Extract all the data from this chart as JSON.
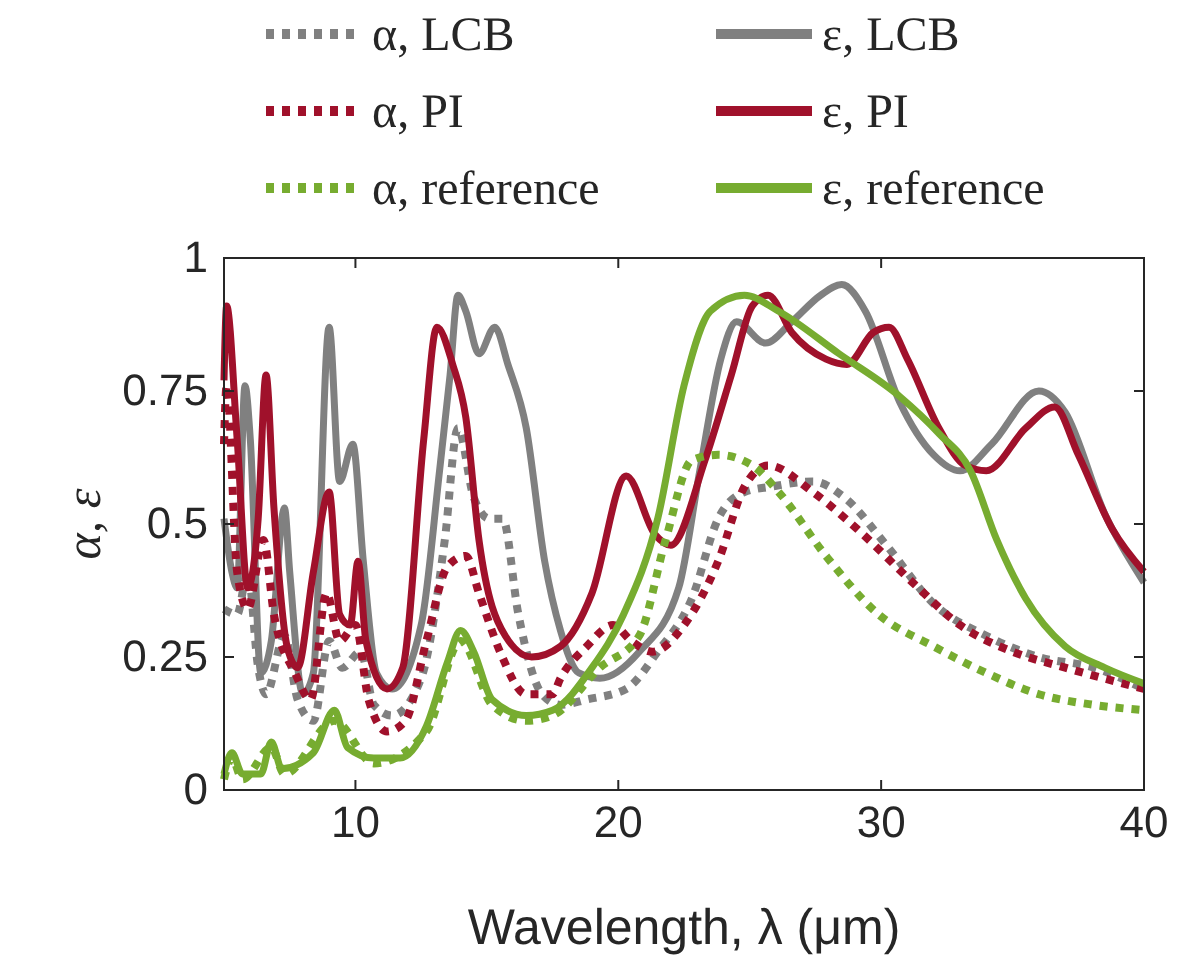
{
  "chart_data": {
    "type": "line",
    "xlabel": "Wavelength, λ (μm)",
    "ylabel": "α, ε",
    "xlim": [
      5,
      40
    ],
    "ylim": [
      0,
      1
    ],
    "xticks": [
      {
        "value": 5,
        "label": null
      },
      10,
      20,
      30,
      40
    ],
    "yticks": [
      0,
      0.25,
      0.5,
      0.75,
      1
    ],
    "grid": false,
    "legend": "top",
    "series": [
      {
        "name": "α, LCB",
        "color": "#808080",
        "line_style": "dotted",
        "x": [
          5,
          5.5,
          5.9,
          6.3,
          6.6,
          7.3,
          7.8,
          8.4,
          9.0,
          9.5,
          10.2,
          10.7,
          11.4,
          12.5,
          13.4,
          13.9,
          14.5,
          15.1,
          15.6,
          16.2,
          17.1,
          17.8,
          18.8,
          20.3,
          21.5,
          22.8,
          23.8,
          24.8,
          25.8,
          27.4,
          28.6,
          30.2,
          32.0,
          34.0,
          36.0,
          38.1,
          40
        ],
        "values": [
          0.34,
          0.33,
          0.41,
          0.23,
          0.18,
          0.29,
          0.17,
          0.13,
          0.28,
          0.23,
          0.26,
          0.16,
          0.14,
          0.21,
          0.47,
          0.68,
          0.55,
          0.51,
          0.51,
          0.33,
          0.18,
          0.16,
          0.17,
          0.19,
          0.26,
          0.36,
          0.51,
          0.56,
          0.57,
          0.58,
          0.55,
          0.46,
          0.35,
          0.29,
          0.25,
          0.23,
          0.19
        ]
      },
      {
        "name": "ε, LCB",
        "color": "#808080",
        "line_style": "solid",
        "x": [
          5,
          5.3,
          5.5,
          5.8,
          6.0,
          6.4,
          6.8,
          7.3,
          7.5,
          8.0,
          8.4,
          9.0,
          9.4,
          9.9,
          10.3,
          10.8,
          11.4,
          12.5,
          13.2,
          13.6,
          13.9,
          14.2,
          14.7,
          15.3,
          15.8,
          16.5,
          17.2,
          17.8,
          18.5,
          19.3,
          20.8,
          22.3,
          23.1,
          23.9,
          24.5,
          25.6,
          26.6,
          27.7,
          28.5,
          29.4,
          30.7,
          32.0,
          33.0,
          34.2,
          36.0,
          37.0,
          38.5,
          40
        ],
        "values": [
          0.51,
          0.41,
          0.38,
          0.76,
          0.66,
          0.22,
          0.28,
          0.53,
          0.41,
          0.18,
          0.22,
          0.87,
          0.58,
          0.65,
          0.43,
          0.22,
          0.19,
          0.31,
          0.6,
          0.78,
          0.93,
          0.9,
          0.82,
          0.87,
          0.8,
          0.68,
          0.43,
          0.3,
          0.22,
          0.21,
          0.26,
          0.38,
          0.6,
          0.81,
          0.88,
          0.84,
          0.88,
          0.93,
          0.95,
          0.9,
          0.73,
          0.63,
          0.6,
          0.65,
          0.75,
          0.71,
          0.52,
          0.39
        ]
      },
      {
        "name": "α, PI",
        "color": "#a0112b",
        "line_style": "dotted",
        "x": [
          5,
          5.1,
          5.5,
          5.9,
          6.5,
          6.9,
          7.7,
          8.3,
          8.9,
          9.4,
          10.0,
          10.5,
          11.2,
          11.9,
          12.7,
          13.5,
          14.2,
          14.7,
          15.5,
          16.5,
          17.5,
          17.8,
          18.8,
          19.8,
          20.5,
          21.3,
          22.5,
          23.8,
          24.8,
          25.7,
          27.4,
          29.1,
          31.2,
          33.0,
          35.0,
          37.0,
          40
        ],
        "values": [
          0.65,
          0.76,
          0.41,
          0.34,
          0.47,
          0.33,
          0.22,
          0.17,
          0.37,
          0.28,
          0.31,
          0.17,
          0.11,
          0.13,
          0.28,
          0.42,
          0.44,
          0.37,
          0.26,
          0.18,
          0.18,
          0.21,
          0.27,
          0.31,
          0.28,
          0.26,
          0.31,
          0.43,
          0.57,
          0.61,
          0.56,
          0.49,
          0.39,
          0.31,
          0.26,
          0.23,
          0.19
        ]
      },
      {
        "name": "ε, PI",
        "color": "#a0112b",
        "line_style": "solid",
        "x": [
          5,
          5.1,
          5.5,
          5.9,
          6.3,
          6.6,
          6.9,
          7.4,
          7.8,
          8.4,
          9.0,
          9.4,
          9.8,
          10.1,
          10.4,
          11.2,
          11.8,
          12.6,
          13.1,
          13.7,
          14.2,
          14.7,
          15.7,
          16.7,
          17.8,
          19.0,
          20.3,
          21.4,
          22.0,
          23.3,
          24.3,
          25.1,
          25.7,
          26.6,
          27.9,
          28.7,
          29.7,
          30.3,
          31.0,
          32.2,
          33.2,
          34.0,
          35.5,
          36.6,
          37.5,
          38.8,
          40
        ],
        "values": [
          0.77,
          0.91,
          0.66,
          0.38,
          0.51,
          0.78,
          0.53,
          0.27,
          0.23,
          0.41,
          0.56,
          0.33,
          0.31,
          0.43,
          0.28,
          0.19,
          0.23,
          0.66,
          0.87,
          0.8,
          0.7,
          0.47,
          0.29,
          0.25,
          0.27,
          0.37,
          0.59,
          0.48,
          0.46,
          0.62,
          0.78,
          0.91,
          0.93,
          0.86,
          0.81,
          0.8,
          0.86,
          0.87,
          0.81,
          0.68,
          0.61,
          0.6,
          0.68,
          0.72,
          0.63,
          0.49,
          0.41
        ]
      },
      {
        "name": "α, reference",
        "color": "#77ac30",
        "line_style": "dotted",
        "x": [
          5,
          5.3,
          5.7,
          6.8,
          7.3,
          9.2,
          10.7,
          12.7,
          14.0,
          15.2,
          16.5,
          17.5,
          19.3,
          20.8,
          21.8,
          22.8,
          23.8,
          25.1,
          26.1,
          27.9,
          29.9,
          32.0,
          34.0,
          36.0,
          38.1,
          40
        ],
        "values": [
          0.02,
          0.06,
          0.02,
          0.08,
          0.03,
          0.13,
          0.05,
          0.11,
          0.28,
          0.16,
          0.13,
          0.14,
          0.23,
          0.29,
          0.47,
          0.62,
          0.63,
          0.61,
          0.56,
          0.44,
          0.33,
          0.27,
          0.22,
          0.18,
          0.16,
          0.15
        ]
      },
      {
        "name": "ε, reference",
        "color": "#77ac30",
        "line_style": "solid",
        "x": [
          5,
          5.3,
          5.7,
          6.4,
          6.8,
          7.2,
          8.4,
          9.2,
          9.7,
          10.7,
          11.7,
          12.7,
          13.5,
          14.0,
          14.5,
          15.2,
          16.5,
          17.5,
          19.0,
          20.2,
          21.5,
          22.5,
          23.5,
          24.8,
          26.1,
          28.4,
          30.7,
          32.2,
          33.4,
          34.4,
          35.5,
          37.0,
          38.5,
          40
        ],
        "values": [
          0.03,
          0.07,
          0.03,
          0.03,
          0.09,
          0.04,
          0.07,
          0.15,
          0.08,
          0.06,
          0.06,
          0.12,
          0.24,
          0.3,
          0.26,
          0.17,
          0.14,
          0.15,
          0.23,
          0.33,
          0.51,
          0.76,
          0.9,
          0.93,
          0.9,
          0.82,
          0.74,
          0.67,
          0.6,
          0.47,
          0.36,
          0.27,
          0.23,
          0.2
        ]
      }
    ]
  }
}
